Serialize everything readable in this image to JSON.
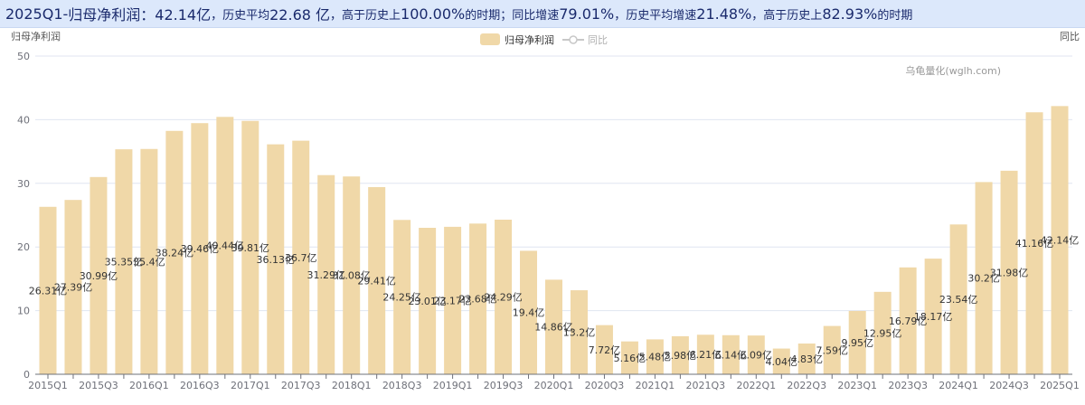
{
  "summary": {
    "period": "2025Q1",
    "dash": " - ",
    "metric": "归母净利润",
    "value": "：42.14亿",
    "avg_label": "，历史平均",
    "avg_value": " 22.68 亿",
    "above_label": "，高于历史上",
    "above_value": " 100.00%",
    "above_tail": " 的时期；同比增速",
    "yoy_value": " 79.01%",
    "yoy_avg_label": "，历史平均增速",
    "yoy_avg_value": " 21.48%",
    "yoy_above_label": "，高于历史上",
    "yoy_above_value": " 82.93%",
    "yoy_above_tail": " 的时期"
  },
  "chart_data": {
    "type": "bar",
    "ylabel_left": "归母净利润",
    "ylabel_right": "同比",
    "watermark": "乌龟量化(wglh.com)",
    "legend": [
      {
        "name": "归母净利润",
        "color": "#f0d8a8",
        "kind": "bar",
        "active": true
      },
      {
        "name": "同比",
        "color": "#c8c8c8",
        "kind": "line",
        "active": false
      }
    ],
    "ylim": [
      0,
      50
    ],
    "yticks": [
      0,
      10,
      20,
      30,
      40,
      50
    ],
    "grid": true,
    "label_suffix": "亿",
    "bar_color": "#f0d8a8",
    "categories": [
      "2015Q1",
      "2015Q2",
      "2015Q3",
      "2015Q4",
      "2016Q1",
      "2016Q2",
      "2016Q3",
      "2016Q4",
      "2017Q1",
      "2017Q2",
      "2017Q3",
      "2017Q4",
      "2018Q1",
      "2018Q2",
      "2018Q3",
      "2018Q4",
      "2019Q1",
      "2019Q2",
      "2019Q3",
      "2019Q4",
      "2020Q1",
      "2020Q2",
      "2020Q3",
      "2020Q4",
      "2021Q1",
      "2021Q2",
      "2021Q3",
      "2021Q4",
      "2022Q1",
      "2022Q2",
      "2022Q3",
      "2022Q4",
      "2023Q1",
      "2023Q2",
      "2023Q3",
      "2023Q4",
      "2024Q1",
      "2024Q2",
      "2024Q3",
      "2024Q4",
      "2025Q1"
    ],
    "values": [
      26.31,
      27.39,
      30.99,
      35.35,
      35.4,
      38.24,
      39.46,
      40.44,
      39.81,
      36.13,
      36.7,
      31.29,
      31.08,
      29.41,
      24.25,
      23.01,
      23.17,
      23.68,
      24.29,
      19.4,
      14.86,
      13.2,
      7.72,
      5.16,
      5.48,
      5.98,
      6.21,
      6.14,
      6.09,
      4.04,
      4.83,
      7.59,
      9.95,
      12.95,
      16.79,
      18.17,
      23.54,
      30.2,
      31.98,
      41.16,
      42.14
    ],
    "data_labels": [
      "26.31亿",
      "27.39亿",
      "30.99亿",
      "35.35亿",
      "35.4亿",
      "38.24亿",
      "39.46亿",
      "40.44亿",
      "39.81亿",
      "36.13亿",
      "36.7亿",
      "31.29亿",
      "31.08亿",
      "29.41亿",
      "24.25亿",
      "23.01亿",
      "23.17亿",
      "23.68亿",
      "24.29亿",
      "19.4亿",
      "14.86亿",
      "13.2亿",
      "7.72亿",
      "5.16亿",
      "5.48亿",
      "5.98亿",
      "6.21亿",
      "6.14亿",
      "6.09亿",
      "4.04亿",
      "4.83亿",
      "7.59亿",
      "9.95亿",
      "12.95亿",
      "16.79亿",
      "18.17亿",
      "23.54亿",
      "30.2亿",
      "31.98亿",
      "41.16亿",
      "42.14亿"
    ],
    "xtick_labels": [
      "2015Q1",
      "2015Q3",
      "2016Q1",
      "2016Q3",
      "2017Q1",
      "2017Q3",
      "2018Q1",
      "2018Q3",
      "2019Q1",
      "2019Q3",
      "2020Q1",
      "2020Q3",
      "2021Q1",
      "2021Q3",
      "2022Q1",
      "2022Q3",
      "2023Q1",
      "2023Q3",
      "2024Q1",
      "2024Q3",
      "2025Q1"
    ]
  }
}
